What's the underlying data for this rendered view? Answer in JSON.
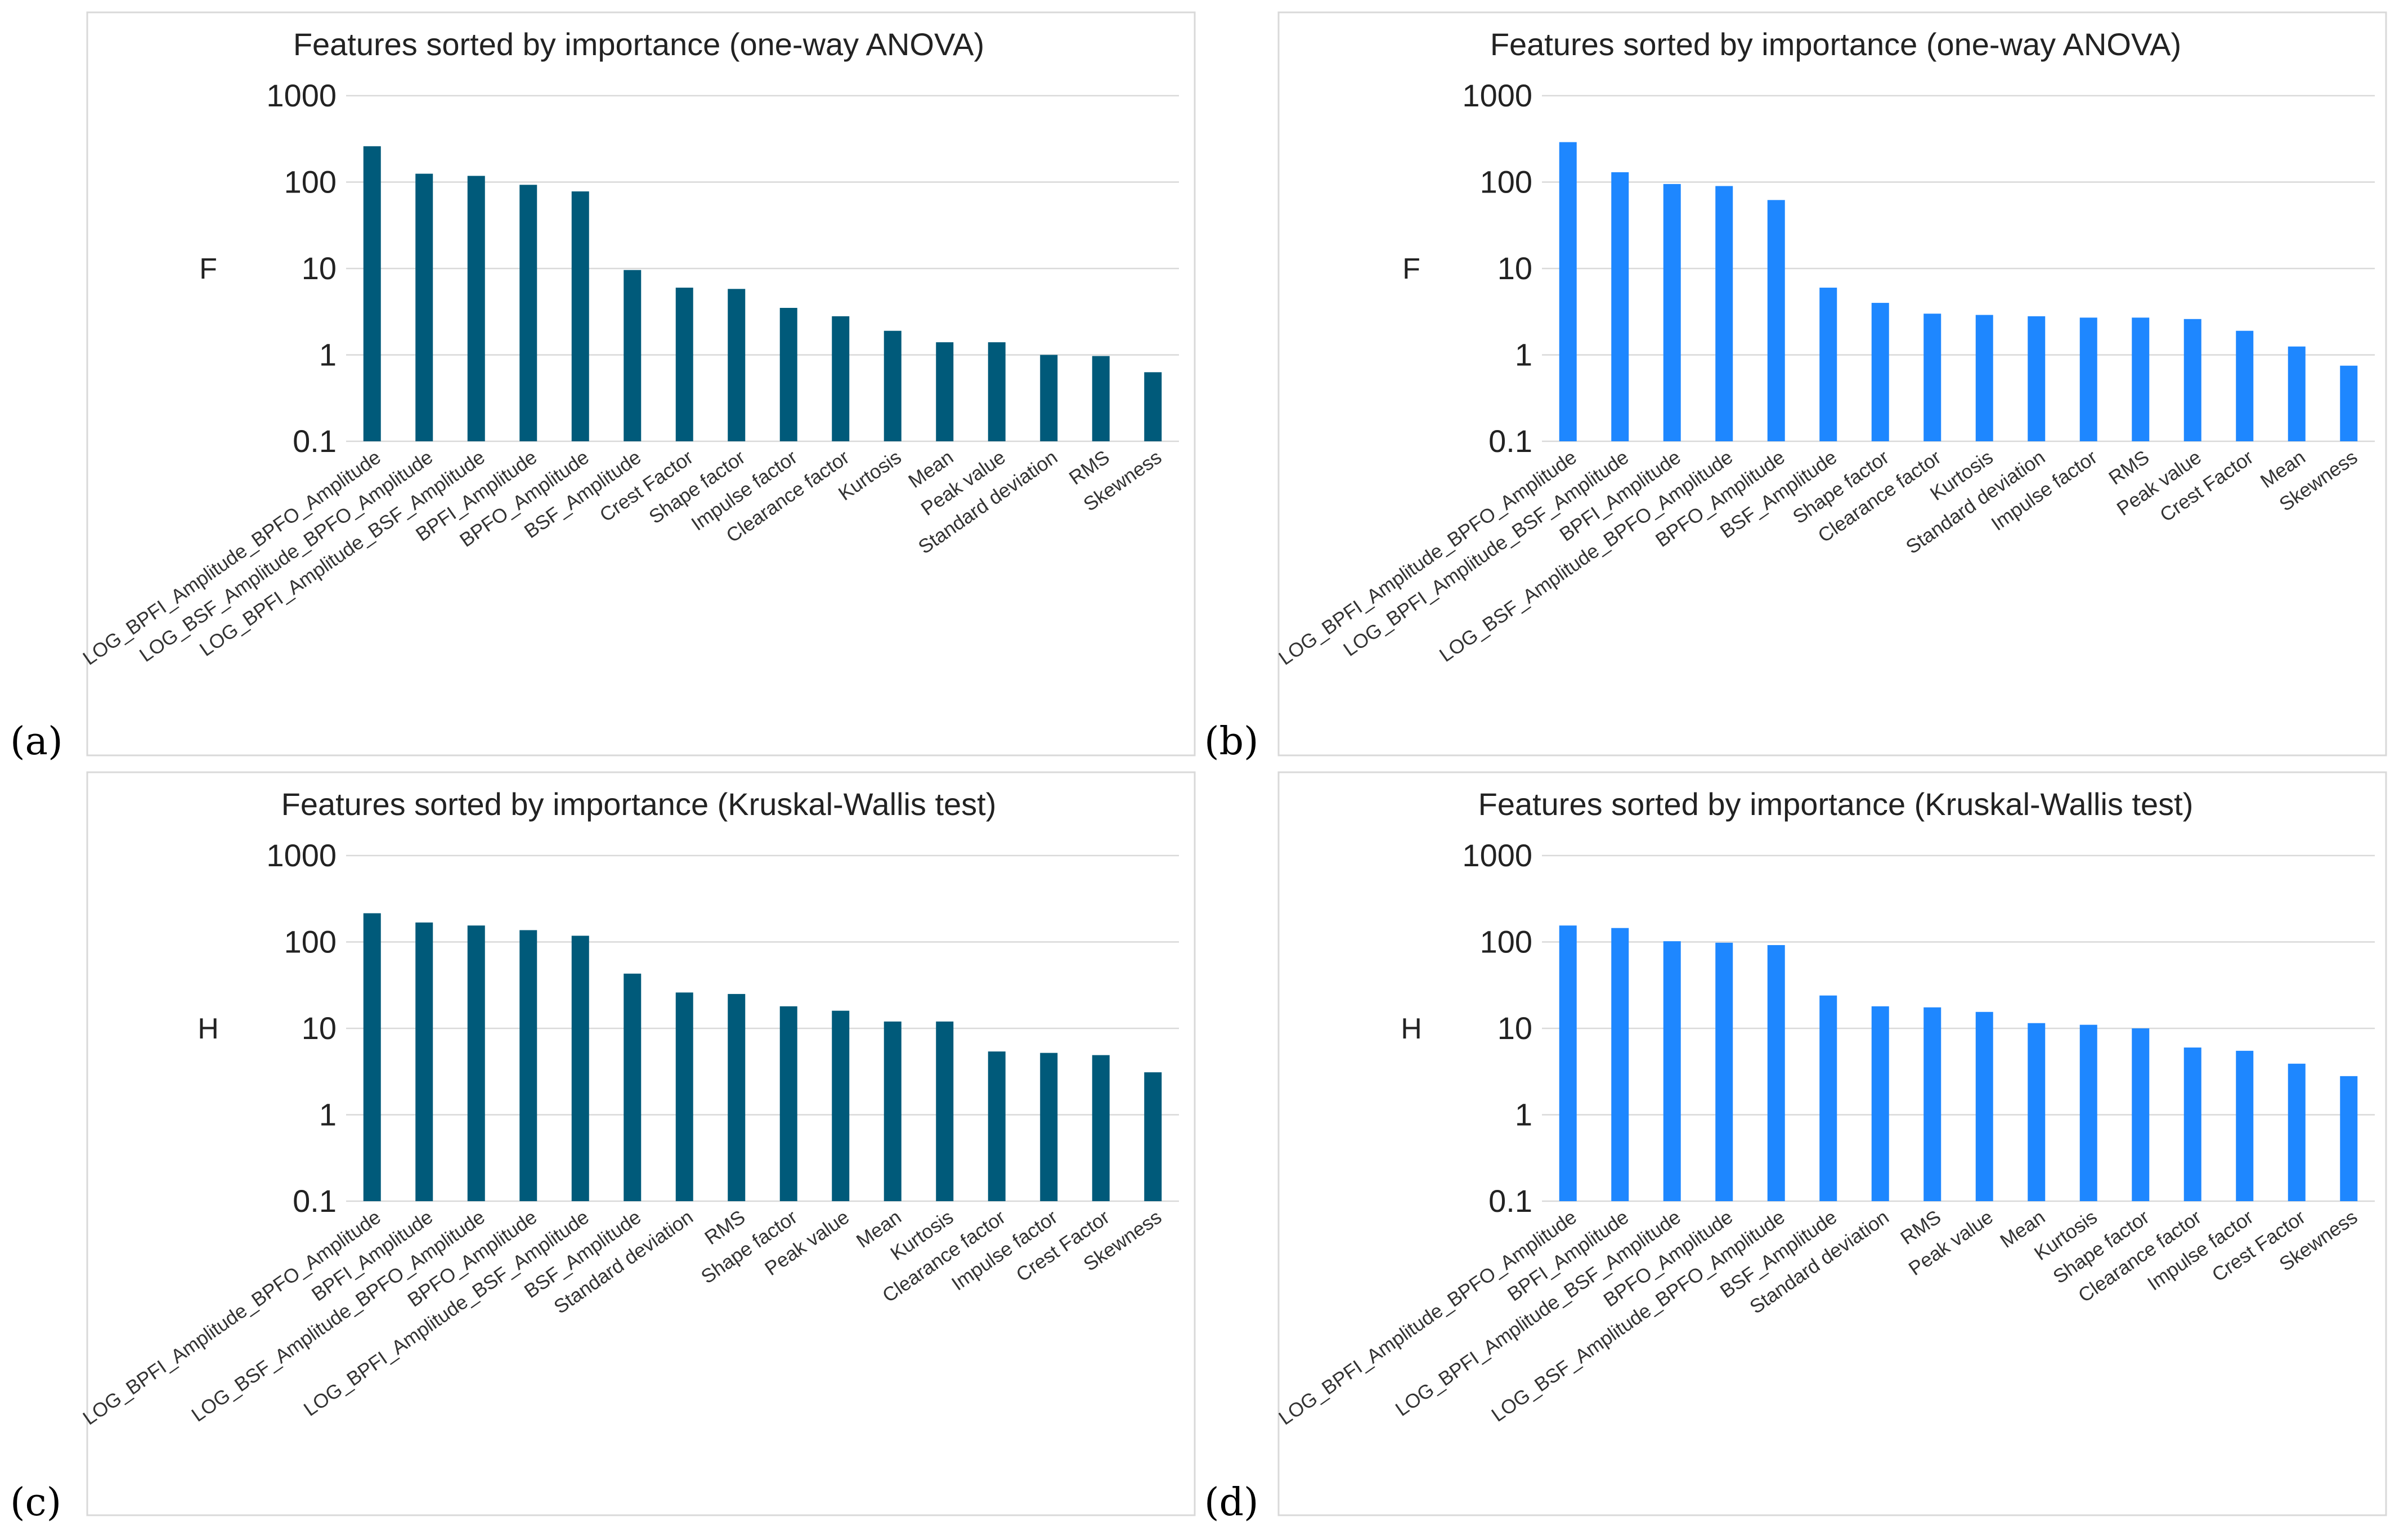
{
  "panels": [
    {
      "label": "(a)",
      "color": "#005a7a"
    },
    {
      "label": "(b)",
      "color": "#1e87ff"
    },
    {
      "label": "(c)",
      "color": "#005a7a"
    },
    {
      "label": "(d)",
      "color": "#1e87ff"
    }
  ],
  "chart_data": [
    {
      "type": "bar",
      "title": "Features sorted by importance (one-way ANOVA)",
      "xlabel": "",
      "ylabel": "F",
      "yscale": "log",
      "ylim": [
        0.1,
        1000
      ],
      "yticks": [
        "0.1",
        "1",
        "10",
        "100",
        "1000"
      ],
      "categories": [
        "LOG_BPFI_Amplitude_BPFO_Amplitude",
        "LOG_BSF_Amplitude_BPFO_Amplitude",
        "LOG_BPFI_Amplitude_BSF_Amplitude",
        "BPFI_Amplitude",
        "BPFO_Amplitude",
        "BSF_Amplitude",
        "Crest Factor",
        "Shape factor",
        "Impulse factor",
        "Clearance factor",
        "Kurtosis",
        "Mean",
        "Peak value",
        "Standard deviation",
        "RMS",
        "Skewness"
      ],
      "values": [
        260,
        125,
        118,
        93,
        78,
        9.6,
        6.0,
        5.8,
        3.5,
        2.8,
        1.9,
        1.4,
        1.4,
        1.0,
        0.97,
        0.63
      ]
    },
    {
      "type": "bar",
      "title": "Features sorted by importance (one-way ANOVA)",
      "xlabel": "",
      "ylabel": "F",
      "yscale": "log",
      "ylim": [
        0.1,
        1000
      ],
      "yticks": [
        "0.1",
        "1",
        "10",
        "100",
        "1000"
      ],
      "categories": [
        "LOG_BPFI_Amplitude_BPFO_Amplitude",
        "LOG_BPFI_Amplitude_BSF_Amplitude",
        "BPFI_Amplitude",
        "LOG_BSF_Amplitude_BPFO_Amplitude",
        "BPFO_Amplitude",
        "BSF_Amplitude",
        "Shape factor",
        "Clearance factor",
        "Kurtosis",
        "Standard deviation",
        "Impulse factor",
        "RMS",
        "Peak value",
        "Crest Factor",
        "Mean",
        "Skewness"
      ],
      "values": [
        290,
        130,
        95,
        90,
        62,
        6.0,
        4.0,
        3.0,
        2.9,
        2.8,
        2.7,
        2.7,
        2.6,
        1.9,
        1.25,
        0.75
      ]
    },
    {
      "type": "bar",
      "title": "Features sorted by importance (Kruskal-Wallis test)",
      "xlabel": "",
      "ylabel": "H",
      "yscale": "log",
      "ylim": [
        0.1,
        1000
      ],
      "yticks": [
        "0.1",
        "1",
        "10",
        "100",
        "1000"
      ],
      "categories": [
        "LOG_BPFI_Amplitude_BPFO_Amplitude",
        "BPFI_Amplitude",
        "LOG_BSF_Amplitude_BPFO_Amplitude",
        "BPFO_Amplitude",
        "LOG_BPFI_Amplitude_BSF_Amplitude",
        "BSF_Amplitude",
        "Standard deviation",
        "RMS",
        "Shape factor",
        "Peak value",
        "Mean",
        "Kurtosis",
        "Clearance factor",
        "Impulse factor",
        "Crest Factor",
        "Skewness"
      ],
      "values": [
        215,
        168,
        155,
        137,
        118,
        43,
        26,
        25,
        18,
        16,
        12,
        12,
        5.4,
        5.2,
        4.9,
        3.1
      ]
    },
    {
      "type": "bar",
      "title": "Features sorted by importance (Kruskal-Wallis test)",
      "xlabel": "",
      "ylabel": "H",
      "yscale": "log",
      "ylim": [
        0.1,
        1000
      ],
      "yticks": [
        "0.1",
        "1",
        "10",
        "100",
        "1000"
      ],
      "categories": [
        "LOG_BPFI_Amplitude_BPFO_Amplitude",
        "BPFI_Amplitude",
        "LOG_BPFI_Amplitude_BSF_Amplitude",
        "BPFO_Amplitude",
        "LOG_BSF_Amplitude_BPFO_Amplitude",
        "BSF_Amplitude",
        "Standard deviation",
        "RMS",
        "Peak value",
        "Mean",
        "Kurtosis",
        "Shape factor",
        "Clearance factor",
        "Impulse factor",
        "Crest Factor",
        "Skewness"
      ],
      "values": [
        155,
        145,
        102,
        98,
        92,
        24,
        18,
        17.5,
        15.5,
        11.5,
        11,
        10,
        6.0,
        5.5,
        3.9,
        2.8
      ]
    }
  ]
}
